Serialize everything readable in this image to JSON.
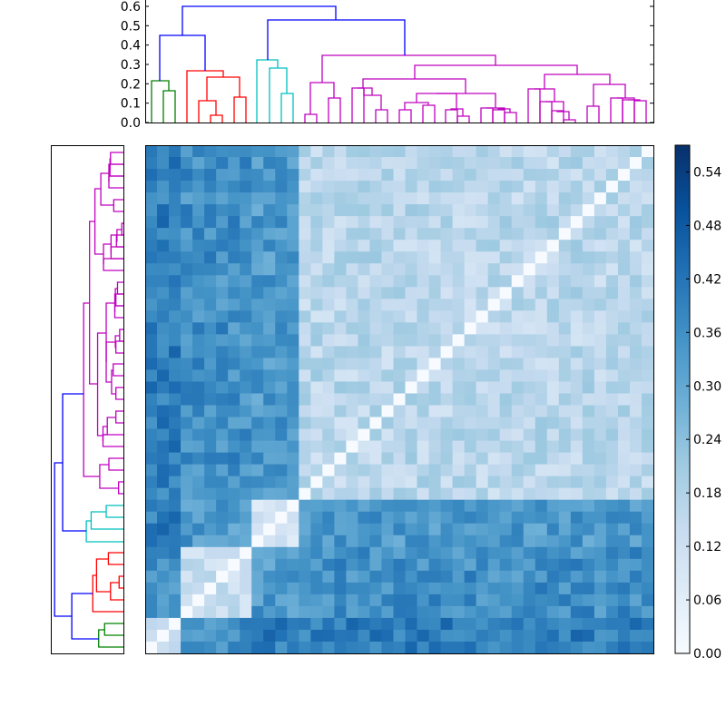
{
  "chart_data": [
    {
      "type": "dendrogram",
      "name": "top-dendrogram",
      "orientation": "top",
      "ylim": [
        0.0,
        0.6
      ],
      "yticks": [
        "0.0",
        "0.1",
        "0.2",
        "0.3",
        "0.4",
        "0.5",
        "0.6"
      ],
      "n_leaves": 43,
      "cluster_colors": {
        "green": "#008000",
        "red": "#ff0000",
        "cyan": "#00bfbf",
        "magenta": "#bf00bf",
        "link": "#0000ff"
      },
      "clusters": [
        {
          "color": "green",
          "leaves": 3,
          "merge_height": 0.21
        },
        {
          "color": "red",
          "leaves": 6,
          "merge_height": 0.26
        },
        {
          "color": "cyan",
          "leaves": 4,
          "merge_height": 0.32
        },
        {
          "color": "magenta",
          "leaves": 30,
          "merge_height": 0.34
        }
      ],
      "links": [
        {
          "left": "green",
          "right": "red",
          "height": 0.44,
          "color": "blue"
        },
        {
          "left": "cyan",
          "right": "magenta",
          "height": 0.51,
          "color": "blue"
        },
        {
          "left": "green+red",
          "right": "cyan+magenta",
          "height": 0.58,
          "color": "blue"
        }
      ]
    },
    {
      "type": "dendrogram",
      "name": "left-dendrogram",
      "orientation": "left",
      "n_leaves": 43,
      "note": "mirror of top dendrogram, leaves ordered top=magenta to bottom=green"
    },
    {
      "type": "heatmap",
      "title": "",
      "xlabel": "",
      "ylabel": "",
      "colormap": "Blues",
      "vmin": 0.0,
      "vmax": 0.57,
      "n_rows": 43,
      "n_cols": 43,
      "diagonal": 0.0,
      "block_means": {
        "order": [
          "magenta",
          "cyan",
          "red",
          "green"
        ],
        "magenta-magenta": 0.16,
        "magenta-cyan": 0.34,
        "magenta-red": 0.36,
        "magenta-green": 0.4,
        "cyan-cyan": 0.12,
        "cyan-red": 0.34,
        "cyan-green": 0.4,
        "red-red": 0.14,
        "red-green": 0.36,
        "green-green": 0.12
      }
    },
    {
      "type": "colorbar",
      "name": "colorbar",
      "range": [
        0.0,
        0.57
      ],
      "ticks": [
        "0.00",
        "0.06",
        "0.12",
        "0.18",
        "0.24",
        "0.30",
        "0.36",
        "0.42",
        "0.48",
        "0.54"
      ]
    }
  ]
}
